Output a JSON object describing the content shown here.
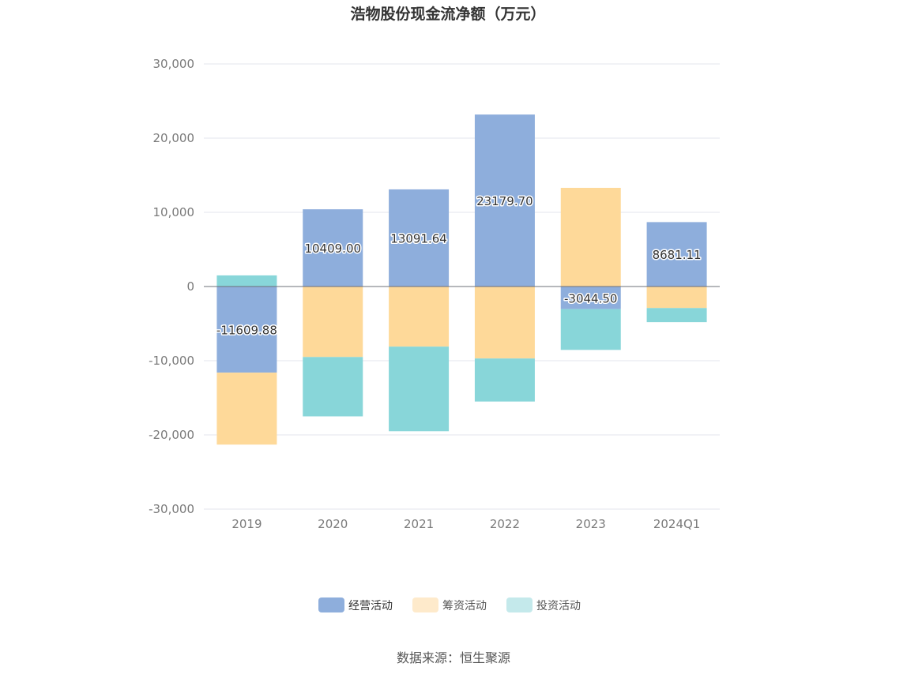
{
  "chart_data": {
    "type": "bar",
    "stacked": true,
    "title": "浩物股份现金流净额（万元）",
    "categories": [
      "2019",
      "2020",
      "2021",
      "2022",
      "2023",
      "2024Q1"
    ],
    "ylim": [
      -30000,
      30000
    ],
    "yticks": [
      30000,
      20000,
      10000,
      0,
      -10000,
      -20000,
      -30000
    ],
    "ytick_labels": [
      "30,000",
      "20,000",
      "10,000",
      "0",
      "-10,000",
      "-20,000",
      "-30,000"
    ],
    "grid": true,
    "legend_position": "bottom",
    "series": [
      {
        "name": "经营活动",
        "color": "#8eaedc",
        "values": [
          -11609.88,
          10409.0,
          13091.64,
          23179.7,
          -3044.5,
          8681.11
        ],
        "labels": [
          "-11609.88",
          "10409.00",
          "13091.64",
          "23179.70",
          "-3044.50",
          "8681.11"
        ]
      },
      {
        "name": "筹资活动",
        "color": "#fed999",
        "values": [
          -9700,
          -9500,
          -8100,
          -9700,
          13300,
          -2900
        ]
      },
      {
        "name": "投资活动",
        "color": "#88d6d9",
        "values": [
          1500,
          -8000,
          -11400,
          -5800,
          -5500,
          -1900
        ]
      }
    ],
    "source": "数据来源：恒生聚源"
  }
}
